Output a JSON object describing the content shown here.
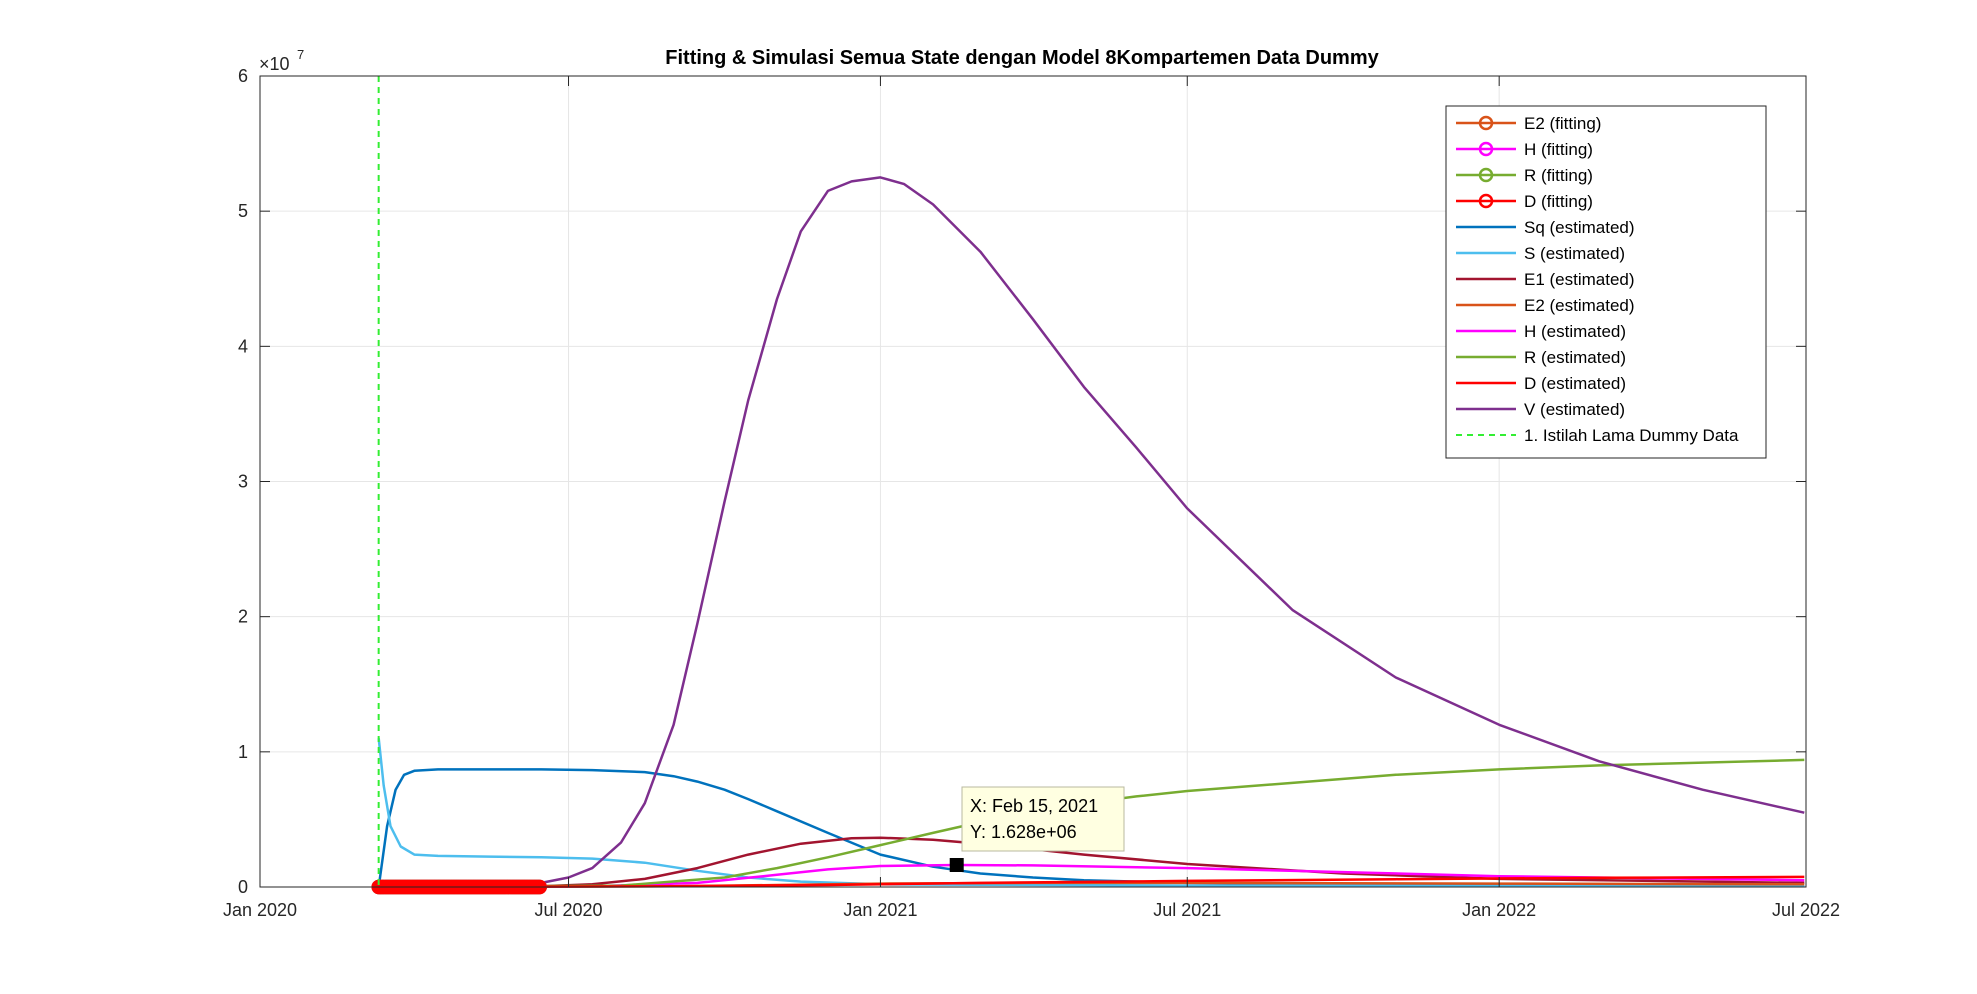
{
  "chart_data": {
    "type": "line",
    "title": "Fitting & Simulasi Semua State dengan Model 8Kompartemen Data Dummy",
    "xlabel": "",
    "ylabel": "",
    "x_range": [
      "2020-01-01",
      "2022-07-01"
    ],
    "x_ticks": [
      "Jan 2020",
      "Jul 2020",
      "Jan 2021",
      "Jul 2021",
      "Jan 2022",
      "Jul 2022"
    ],
    "y_exponent_label": "×10",
    "y_exponent": "7",
    "ylim": [
      0,
      6
    ],
    "y_ticks": [
      "0",
      "1",
      "2",
      "3",
      "4",
      "5",
      "6"
    ],
    "grid": true,
    "legend_position": "top-right",
    "datatip": {
      "x": "2021-02-15",
      "y": 0.1628,
      "line1": "X: Feb 15, 2021",
      "line2": "Y: 1.628e+06"
    },
    "vline": {
      "name": "1. Istilah Lama Dummy Data",
      "x": "2020-03-11",
      "color": "#33ee33"
    },
    "series": [
      {
        "name": "E2 (fitting)",
        "color": "#d95319",
        "marker": true,
        "x": [
          "2020-03-11",
          "2020-06-14"
        ],
        "y": [
          0,
          0
        ]
      },
      {
        "name": "H (fitting)",
        "color": "#ff00ff",
        "marker": true,
        "x": [
          "2020-03-11",
          "2020-06-14"
        ],
        "y": [
          0,
          0
        ]
      },
      {
        "name": "R (fitting)",
        "color": "#77ac30",
        "marker": true,
        "x": [
          "2020-03-11",
          "2020-06-14"
        ],
        "y": [
          0,
          0
        ]
      },
      {
        "name": "D (fitting)",
        "color": "#ff0000",
        "marker": true,
        "x": [
          "2020-03-11",
          "2020-06-14"
        ],
        "y": [
          0,
          0
        ]
      },
      {
        "name": "Sq (estimated)",
        "color": "#0072bd",
        "marker": false,
        "x": [
          "2020-03-11",
          "2020-03-16",
          "2020-03-21",
          "2020-03-26",
          "2020-04-01",
          "2020-04-15",
          "2020-05-15",
          "2020-06-15",
          "2020-07-15",
          "2020-08-15",
          "2020-09-01",
          "2020-09-15",
          "2020-10-01",
          "2020-10-15",
          "2020-11-01",
          "2020-12-01",
          "2021-01-01",
          "2021-02-01",
          "2021-03-01",
          "2021-04-01",
          "2021-05-01",
          "2021-07-01",
          "2022-01-01",
          "2022-06-30"
        ],
        "y": [
          0,
          0.45,
          0.72,
          0.83,
          0.86,
          0.87,
          0.87,
          0.87,
          0.865,
          0.85,
          0.82,
          0.78,
          0.72,
          0.65,
          0.56,
          0.4,
          0.24,
          0.15,
          0.1,
          0.07,
          0.05,
          0.03,
          0.01,
          0.005
        ]
      },
      {
        "name": "S (estimated)",
        "color": "#4dbeee",
        "marker": false,
        "x": [
          "2020-03-11",
          "2020-03-14",
          "2020-03-18",
          "2020-03-24",
          "2020-04-01",
          "2020-04-15",
          "2020-05-15",
          "2020-06-15",
          "2020-07-15",
          "2020-08-15",
          "2020-09-15",
          "2020-10-15",
          "2020-11-15",
          "2021-01-01",
          "2021-07-01",
          "2022-06-30"
        ],
        "y": [
          1.1,
          0.75,
          0.45,
          0.3,
          0.24,
          0.23,
          0.225,
          0.22,
          0.21,
          0.18,
          0.12,
          0.07,
          0.04,
          0.02,
          0.01,
          0.005
        ]
      },
      {
        "name": "E1 (estimated)",
        "color": "#a2142f",
        "marker": false,
        "x": [
          "2020-03-11",
          "2020-06-15",
          "2020-07-15",
          "2020-08-15",
          "2020-09-15",
          "2020-10-15",
          "2020-11-15",
          "2020-12-15",
          "2021-01-01",
          "2021-02-01",
          "2021-03-01",
          "2021-04-01",
          "2021-05-01",
          "2021-07-01",
          "2021-10-01",
          "2022-01-01",
          "2022-06-30"
        ],
        "y": [
          0,
          0.005,
          0.02,
          0.06,
          0.14,
          0.24,
          0.32,
          0.36,
          0.365,
          0.35,
          0.32,
          0.28,
          0.24,
          0.17,
          0.1,
          0.06,
          0.03
        ]
      },
      {
        "name": "E2 (estimated)",
        "color": "#d95319",
        "marker": false,
        "x": [
          "2020-03-11",
          "2020-09-01",
          "2020-11-01",
          "2021-01-01",
          "2021-04-01",
          "2021-07-01",
          "2022-01-01",
          "2022-06-30"
        ],
        "y": [
          0,
          0.005,
          0.015,
          0.025,
          0.03,
          0.03,
          0.025,
          0.02
        ]
      },
      {
        "name": "H (estimated)",
        "color": "#ff00ff",
        "marker": false,
        "x": [
          "2020-03-11",
          "2020-07-15",
          "2020-09-15",
          "2020-11-01",
          "2020-12-01",
          "2021-01-01",
          "2021-02-15",
          "2021-04-01",
          "2021-07-01",
          "2021-10-01",
          "2022-01-01",
          "2022-06-30"
        ],
        "y": [
          0,
          0.005,
          0.03,
          0.09,
          0.13,
          0.155,
          0.1628,
          0.16,
          0.14,
          0.11,
          0.08,
          0.05
        ]
      },
      {
        "name": "R (estimated)",
        "color": "#77ac30",
        "marker": false,
        "x": [
          "2020-03-11",
          "2020-08-01",
          "2020-10-01",
          "2020-11-01",
          "2020-12-01",
          "2021-01-01",
          "2021-02-01",
          "2021-03-01",
          "2021-04-01",
          "2021-05-01",
          "2021-06-01",
          "2021-07-01",
          "2021-09-01",
          "2021-11-01",
          "2022-01-01",
          "2022-03-01",
          "2022-06-30"
        ],
        "y": [
          0,
          0.01,
          0.07,
          0.14,
          0.22,
          0.31,
          0.4,
          0.48,
          0.56,
          0.62,
          0.67,
          0.71,
          0.77,
          0.83,
          0.87,
          0.9,
          0.94
        ]
      },
      {
        "name": "D (estimated)",
        "color": "#ff0000",
        "marker": false,
        "x": [
          "2020-03-11",
          "2020-09-01",
          "2020-12-01",
          "2021-03-01",
          "2021-07-01",
          "2021-11-01",
          "2022-03-01",
          "2022-06-30"
        ],
        "y": [
          0,
          0.005,
          0.015,
          0.03,
          0.045,
          0.058,
          0.068,
          0.075
        ]
      },
      {
        "name": "V (estimated)",
        "color": "#7e2f8e",
        "marker": false,
        "x": [
          "2020-03-11",
          "2020-05-01",
          "2020-06-15",
          "2020-07-01",
          "2020-07-15",
          "2020-08-01",
          "2020-08-15",
          "2020-09-01",
          "2020-09-15",
          "2020-10-01",
          "2020-10-15",
          "2020-11-01",
          "2020-11-15",
          "2020-12-01",
          "2020-12-15",
          "2021-01-01",
          "2021-01-15",
          "2021-02-01",
          "2021-03-01",
          "2021-04-01",
          "2021-05-01",
          "2021-06-01",
          "2021-07-01",
          "2021-09-01",
          "2021-11-01",
          "2022-01-01",
          "2022-03-01",
          "2022-05-01",
          "2022-06-30"
        ],
        "y": [
          0,
          0.005,
          0.03,
          0.07,
          0.14,
          0.33,
          0.62,
          1.2,
          1.95,
          2.85,
          3.6,
          4.35,
          4.85,
          5.15,
          5.22,
          5.25,
          5.2,
          5.05,
          4.7,
          4.2,
          3.7,
          3.25,
          2.8,
          2.05,
          1.55,
          1.2,
          0.93,
          0.72,
          0.55
        ]
      }
    ]
  }
}
